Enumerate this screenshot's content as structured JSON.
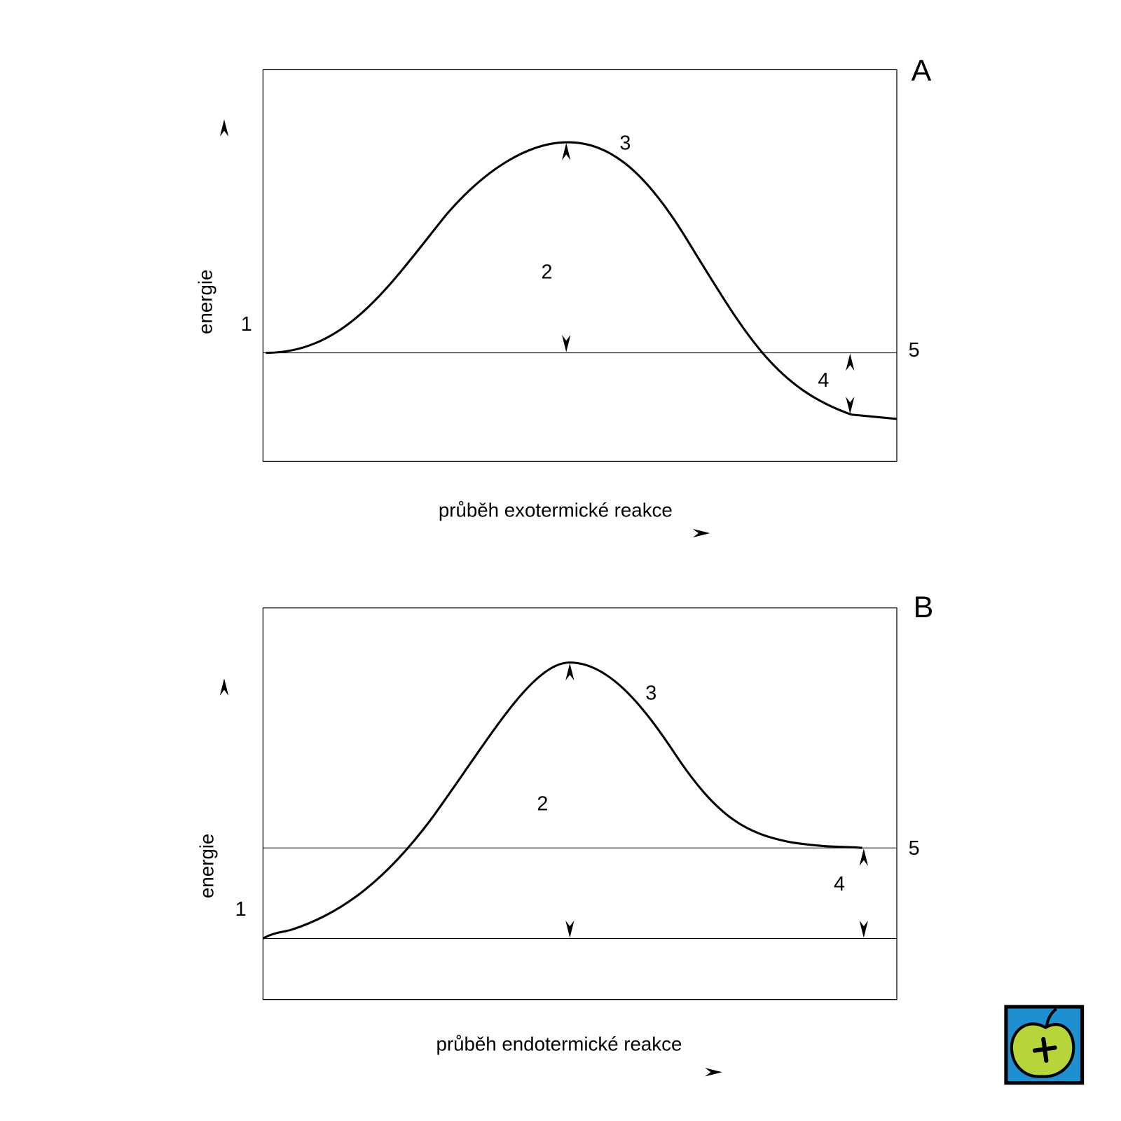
{
  "panels": [
    {
      "letter": "A",
      "y_label": "energie",
      "x_label": "průběh exotermické reakce",
      "markers": [
        "1",
        "2",
        "3",
        "4",
        "5"
      ]
    },
    {
      "letter": "B",
      "y_label": "energie",
      "x_label": "průběh endotermické reakce",
      "markers": [
        "1",
        "2",
        "3",
        "4",
        "5"
      ]
    }
  ]
}
